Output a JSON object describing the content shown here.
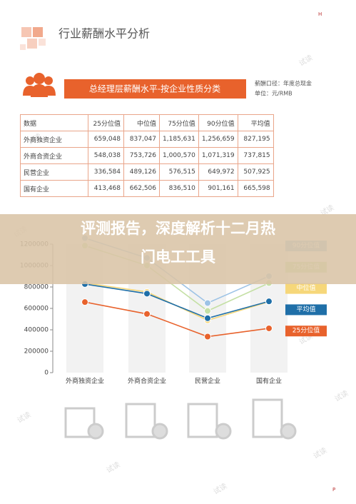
{
  "page": {
    "corner_mark": "H",
    "page_mark": "P",
    "watermark": "试读"
  },
  "header": {
    "title": "行业薪酬水平分析"
  },
  "section": {
    "title": "总经理层薪酬水平-按企业性质分类",
    "notes": [
      "薪酬口径：年度总现金",
      "单位：元/RMB"
    ]
  },
  "table": {
    "columns": [
      "数据",
      "25分位值",
      "中位值",
      "75分位值",
      "90分位值",
      "平均值"
    ],
    "rows": [
      [
        "外商独资企业",
        "659,048",
        "837,047",
        "1,185,631",
        "1,256,659",
        "827,195"
      ],
      [
        "外商合资企业",
        "548,038",
        "753,726",
        "1,000,570",
        "1,071,319",
        "737,815"
      ],
      [
        "民营企业",
        "336,584",
        "489,126",
        "576,515",
        "649,972",
        "507,925"
      ],
      [
        "国有企业",
        "413,468",
        "662,506",
        "836,510",
        "901,161",
        "665,598"
      ]
    ]
  },
  "chart_data": {
    "type": "line",
    "categories": [
      "外商独资企业",
      "外商合资企业",
      "民营企业",
      "国有企业"
    ],
    "ylim": [
      0,
      1200000
    ],
    "yticks": [
      0,
      200000,
      400000,
      600000,
      800000,
      1000000,
      1200000
    ],
    "series": [
      {
        "name": "90分位值",
        "color": "#9dc3e6",
        "values": [
          1256659,
          1071319,
          649972,
          901161
        ]
      },
      {
        "name": "75分位值",
        "color": "#c5e0a5",
        "values": [
          1185631,
          1000570,
          576515,
          836510
        ]
      },
      {
        "name": "中位值",
        "color": "#f6d77a",
        "values": [
          837047,
          753726,
          489126,
          662506
        ]
      },
      {
        "name": "平均值",
        "color": "#1f6fa8",
        "values": [
          827195,
          737815,
          507925,
          665598
        ]
      },
      {
        "name": "25分位值",
        "color": "#e8622c",
        "values": [
          659048,
          548038,
          336584,
          413468
        ]
      }
    ]
  },
  "overlay": {
    "lines": [
      "评测报告，深度解析十二月热",
      "门电工工具"
    ]
  }
}
